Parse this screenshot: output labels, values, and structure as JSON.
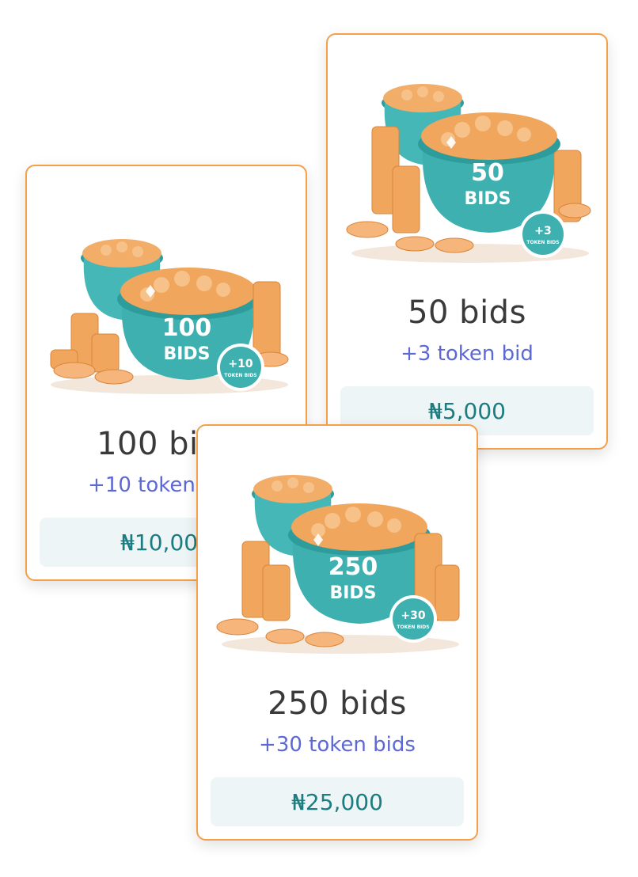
{
  "packages": [
    {
      "art_main": "100",
      "art_word": "BIDS",
      "art_badge_value": "+10",
      "art_badge_word": "TOKEN BIDS",
      "title": "100 bids",
      "bonus": "+10 token bids",
      "price": "₦10,000"
    },
    {
      "art_main": "50",
      "art_word": "BIDS",
      "art_badge_value": "+3",
      "art_badge_word": "TOKEN BIDS",
      "title": "50 bids",
      "bonus": "+3 token bid",
      "price": "₦5,000"
    },
    {
      "art_main": "250",
      "art_word": "BIDS",
      "art_badge_value": "+30",
      "art_badge_word": "TOKEN BIDS",
      "title": "250 bids",
      "bonus": "+30 token bids",
      "price": "₦25,000"
    }
  ],
  "colors": {
    "card_border": "#f4a04a",
    "pot": "#3fb0b0",
    "coin": "#f0a65c",
    "bonus_text": "#5c68d6",
    "price_text": "#1c7d80",
    "price_bg": "#eef5f6"
  },
  "icons": {
    "package_art": "coin-pot-illustration",
    "badge": "token-bonus-badge-icon"
  }
}
